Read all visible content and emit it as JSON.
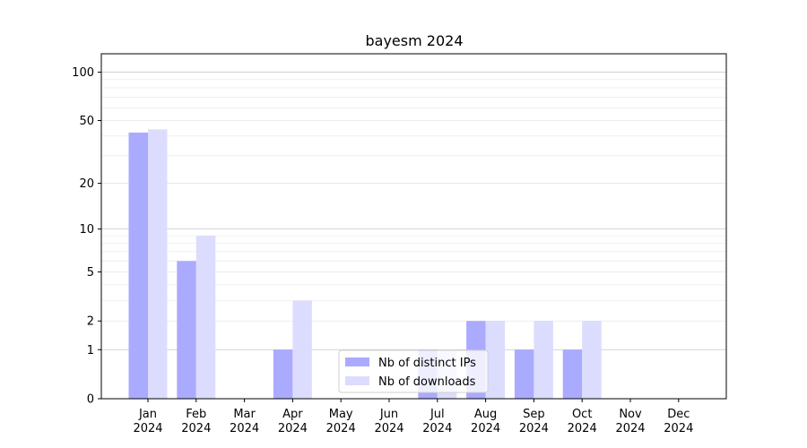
{
  "chart_data": {
    "type": "bar",
    "title": "bayesm 2024",
    "xlabel": "",
    "ylabel": "",
    "categories": [
      "Jan\n2024",
      "Feb\n2024",
      "Mar\n2024",
      "Apr\n2024",
      "May\n2024",
      "Jun\n2024",
      "Jul\n2024",
      "Aug\n2024",
      "Sep\n2024",
      "Oct\n2024",
      "Nov\n2024",
      "Dec\n2024"
    ],
    "series": [
      {
        "name": "Nb of distinct IPs",
        "color": "#aaaaff",
        "values": [
          42,
          6,
          0,
          1,
          0,
          0,
          1,
          2,
          1,
          1,
          0,
          0
        ]
      },
      {
        "name": "Nb of downloads",
        "color": "#dcdcff",
        "values": [
          44,
          9,
          0,
          3,
          0,
          0,
          1,
          2,
          2,
          2,
          0,
          0
        ]
      }
    ],
    "yscale": "log(1+y)",
    "ylim": [
      0,
      130
    ],
    "yticks": [
      0,
      1,
      2,
      5,
      10,
      20,
      50,
      100
    ],
    "grid": true,
    "legend_position": "lower-center"
  }
}
